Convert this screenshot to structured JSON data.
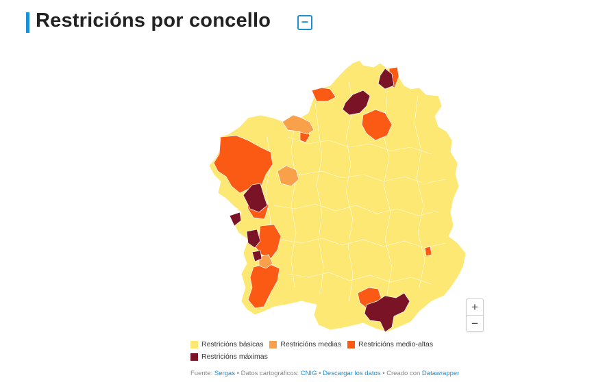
{
  "header": {
    "title": "Restricións por concello",
    "collapse_label": "–"
  },
  "zoom": {
    "in_label": "+",
    "out_label": "−"
  },
  "legend": {
    "items": [
      {
        "label": "Restricións básicas",
        "color": "#fde873"
      },
      {
        "label": "Restricións medias",
        "color": "#f9a04a"
      },
      {
        "label": "Restricións medio-altas",
        "color": "#fa5a14"
      },
      {
        "label": "Restricións máximas",
        "color": "#7b1327"
      }
    ]
  },
  "footer": {
    "source_prefix": "Fuente:",
    "source_link": "Sergas",
    "sep1": "•",
    "carto_prefix": "Datos cartográficos:",
    "carto_link": "CNIG",
    "sep2": "•",
    "download_link": "Descargar los datos",
    "sep3": "•",
    "created_prefix": "Creado con",
    "created_link": "Datawrapper"
  },
  "colors": {
    "border": "#ffffff",
    "accent": "#1b8fd6"
  }
}
